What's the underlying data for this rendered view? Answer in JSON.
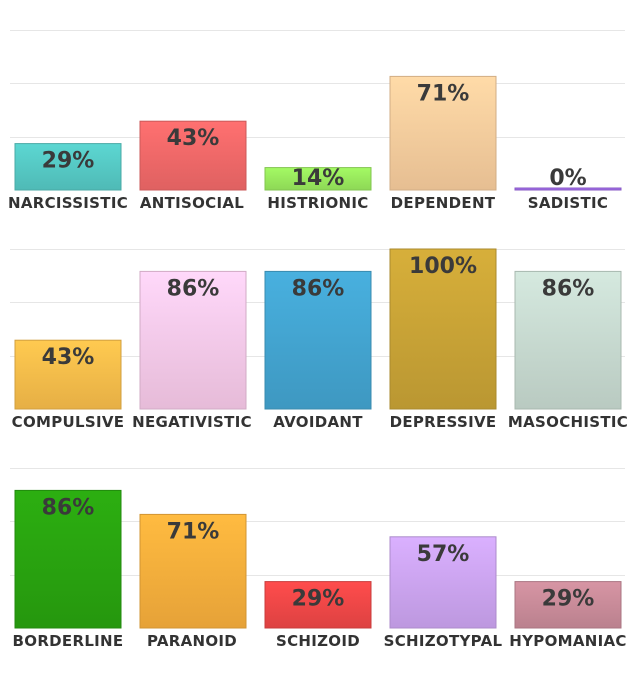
{
  "chart_data": [
    {
      "type": "bar",
      "categories": [
        "NARCISSISTIC",
        "ANTISOCIAL",
        "HISTRIONIC",
        "DEPENDENT",
        "SADISTIC"
      ],
      "values": [
        29,
        43,
        14,
        71,
        0
      ],
      "value_labels": [
        "29%",
        "43%",
        "14%",
        "71%",
        "0%"
      ],
      "colors": [
        "#58cfca",
        "#f86c6c",
        "#9ef060",
        "#ffd3a2",
        "#a66ff0"
      ],
      "ylim": [
        0,
        100
      ],
      "grid": true
    },
    {
      "type": "bar",
      "categories": [
        "COMPULSIVE",
        "NEGATIVISTIC",
        "AVOIDANT",
        "DEPRESSIVE",
        "MASOCHISTIC"
      ],
      "values": [
        43,
        86,
        86,
        100,
        86
      ],
      "value_labels": [
        "43%",
        "86%",
        "86%",
        "100%",
        "86%"
      ],
      "colors": [
        "#ffc24d",
        "#ffd0f0",
        "#45a9d6",
        "#cfa838",
        "#cde0d6"
      ],
      "ylim": [
        0,
        100
      ],
      "grid": true
    },
    {
      "type": "bar",
      "categories": [
        "BORDERLINE",
        "PARANOID",
        "SCHIZOID",
        "SCHIZOTYPAL",
        "HYPOMANIAC"
      ],
      "values": [
        86,
        71,
        29,
        57,
        29
      ],
      "value_labels": [
        "86%",
        "71%",
        "29%",
        "57%",
        "29%"
      ],
      "colors": [
        "#2aa810",
        "#ffb43e",
        "#f54949",
        "#d2a9f8",
        "#cf8f9e"
      ],
      "ylim": [
        0,
        100
      ],
      "grid": true
    }
  ]
}
